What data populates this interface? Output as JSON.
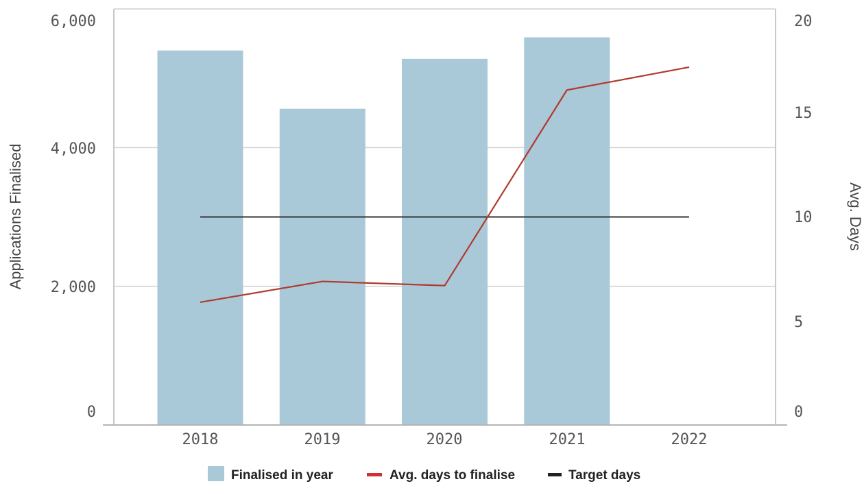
{
  "chart_data": {
    "type": "bar",
    "categories": [
      "2018",
      "2019",
      "2020",
      "2021",
      "2022"
    ],
    "series": [
      {
        "name": "Finalised in year",
        "type": "bar",
        "axis": "left",
        "color": "#a9c8d8",
        "values": [
          5400,
          4560,
          5280,
          5590,
          null
        ]
      },
      {
        "name": "Avg. days to finalise",
        "type": "line",
        "axis": "right",
        "color": "#b03a2e",
        "values": [
          5.9,
          6.9,
          6.7,
          16.1,
          17.2
        ]
      },
      {
        "name": "Target days",
        "type": "line",
        "axis": "right",
        "color": "#333333",
        "values": [
          10,
          10,
          10,
          10,
          10
        ]
      }
    ],
    "ylabel": "Applications Finalised",
    "y2label": "Avg. Days",
    "ylim": [
      0,
      6000
    ],
    "y2lim": [
      0,
      20
    ],
    "yticks": [
      "0",
      "2,000",
      "4,000",
      "6,000"
    ],
    "y2ticks": [
      "0",
      "5",
      "10",
      "15",
      "20"
    ],
    "grid": true,
    "legend": "bottom",
    "legend_colors": [
      "#a9c8d8",
      "#d32f2f",
      "#222222"
    ]
  }
}
